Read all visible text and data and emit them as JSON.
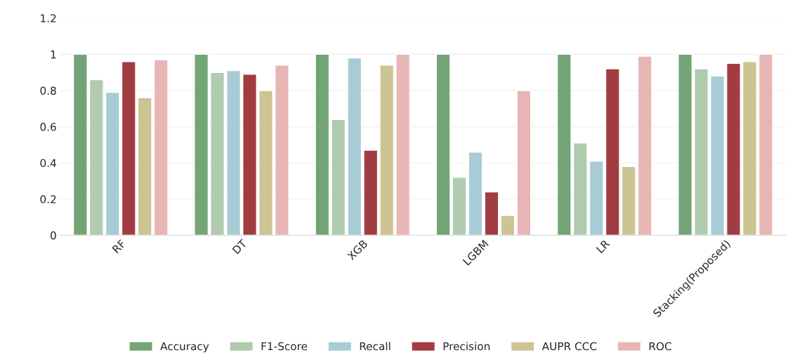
{
  "chart_data": {
    "type": "bar",
    "categories": [
      "RF",
      "DT",
      "XGB",
      "LGBM",
      "LR",
      "Stacking(Proposed)"
    ],
    "series": [
      {
        "name": "Accuracy",
        "color": "#72a476",
        "values": [
          1,
          1,
          1,
          1,
          1,
          1
        ]
      },
      {
        "name": "F1-Score",
        "color": "#b0cbae",
        "values": [
          0.86,
          0.9,
          0.64,
          0.32,
          0.51,
          0.92
        ]
      },
      {
        "name": "Recall",
        "color": "#a8ccd6",
        "values": [
          0.79,
          0.91,
          0.98,
          0.46,
          0.41,
          0.88
        ]
      },
      {
        "name": "Precision",
        "color": "#a13d42",
        "values": [
          0.96,
          0.89,
          0.47,
          0.24,
          0.92,
          0.95
        ]
      },
      {
        "name": "AUPR CCC",
        "color": "#cdc494",
        "values": [
          0.76,
          0.8,
          0.94,
          0.11,
          0.38,
          0.96
        ]
      },
      {
        "name": "ROC",
        "color": "#e8b5b5",
        "values": [
          0.97,
          0.94,
          1.0,
          0.8,
          0.99,
          1.0
        ]
      }
    ],
    "ylim": [
      0,
      1.2
    ],
    "yticks": [
      0,
      0.2,
      0.4,
      0.6,
      0.8,
      1,
      1.2
    ],
    "grid": "y",
    "legend": "bottom"
  }
}
